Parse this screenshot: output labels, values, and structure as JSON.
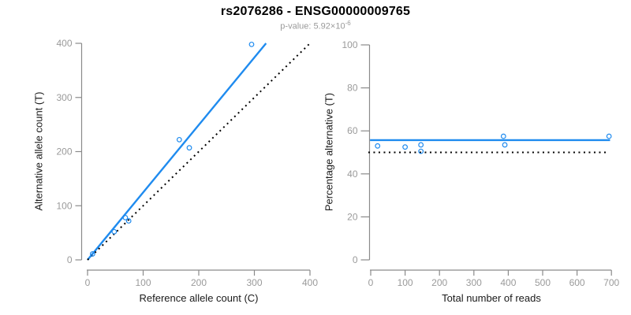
{
  "title": "rs2076286 - ENSG00000009765",
  "subtitle": {
    "prefix": "p-value: 5.92×10",
    "exponent": "-6"
  },
  "colors": {
    "series_blue": "#1F8BEF",
    "reference_black": "#000000",
    "axis_line_gray": "#8a8a8a",
    "tick_label_gray": "#9a9a9a",
    "axis_title_color": "#1a1a1a",
    "subtitle_gray": "#9a9a9a",
    "background": "#ffffff"
  },
  "chart_data": [
    {
      "type": "scatter",
      "panel": "left",
      "xlabel": "Reference allele count (C)",
      "ylabel": "Alternative allele count (T)",
      "xlim": [
        0,
        400
      ],
      "ylim": [
        0,
        400
      ],
      "xticks": [
        0,
        100,
        200,
        300,
        400
      ],
      "yticks": [
        0,
        100,
        200,
        300,
        400
      ],
      "grid": false,
      "legend": "none",
      "point_color": "#1F8BEF",
      "points": [
        [
          9,
          11
        ],
        [
          48,
          52
        ],
        [
          68,
          78
        ],
        [
          74,
          72
        ],
        [
          165,
          222
        ],
        [
          183,
          207
        ],
        [
          295,
          398
        ]
      ],
      "lines": [
        {
          "name": "fitted-line",
          "color": "#1F8BEF",
          "style": "solid",
          "width": 2.4,
          "from": [
            0,
            0
          ],
          "to": [
            321,
            400
          ]
        },
        {
          "name": "identity-line",
          "color": "#000000",
          "style": "dotted",
          "width": 2,
          "from": [
            0,
            0
          ],
          "to": [
            400,
            400
          ]
        }
      ]
    },
    {
      "type": "scatter",
      "panel": "right",
      "xlabel": "Total number of reads",
      "ylabel": "Percentage alternative (T)",
      "xlim": [
        0,
        700
      ],
      "ylim": [
        0,
        100
      ],
      "xticks": [
        0,
        100,
        200,
        300,
        400,
        500,
        600,
        700
      ],
      "yticks": [
        0,
        20,
        40,
        60,
        80,
        100
      ],
      "grid": false,
      "legend": "none",
      "point_color": "#1F8BEF",
      "points": [
        [
          20,
          53
        ],
        [
          100,
          52.5
        ],
        [
          146,
          53.5
        ],
        [
          146,
          50.5
        ],
        [
          386,
          57.5
        ],
        [
          390,
          53.5
        ],
        [
          693,
          57.5
        ]
      ],
      "lines": [
        {
          "name": "mean-percentage-line",
          "color": "#1F8BEF",
          "style": "solid",
          "width": 2.4,
          "from": [
            -2,
            55.7
          ],
          "to": [
            696,
            55.7
          ]
        },
        {
          "name": "fifty-percent-line",
          "color": "#000000",
          "style": "dotted",
          "width": 2,
          "from": [
            -7,
            50
          ],
          "to": [
            690,
            50
          ]
        }
      ]
    }
  ]
}
